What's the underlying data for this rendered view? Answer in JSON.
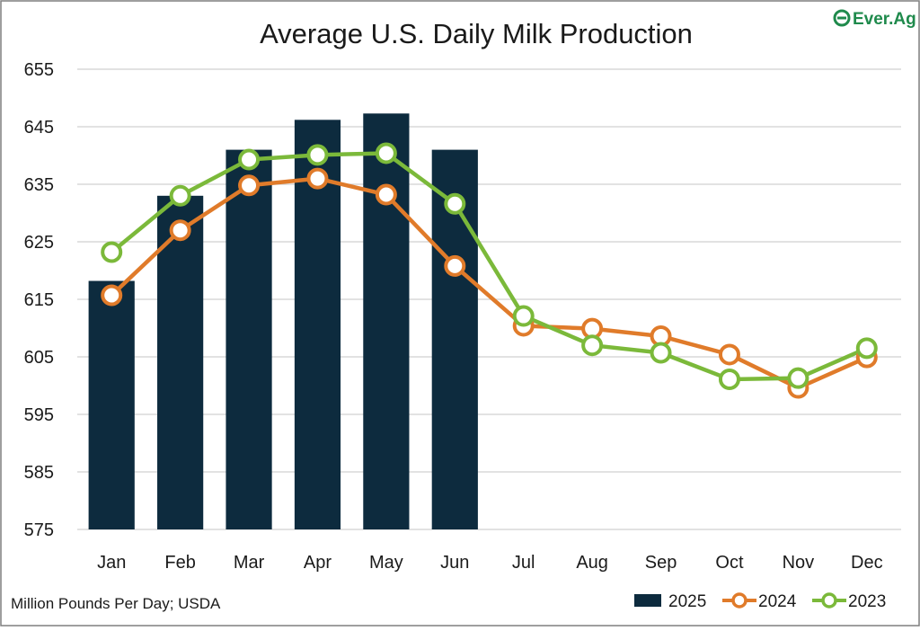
{
  "brand": {
    "logo_text": "Ever.Ag",
    "logo_color": "#1f8a4c"
  },
  "footer": {
    "source_note": "Million Pounds Per Day; USDA"
  },
  "chart_data": {
    "type": "bar",
    "title": "Average U.S. Daily Milk Production",
    "xlabel": "",
    "ylabel": "",
    "categories": [
      "Jan",
      "Feb",
      "Mar",
      "Apr",
      "May",
      "Jun",
      "Jul",
      "Aug",
      "Sep",
      "Oct",
      "Nov",
      "Dec"
    ],
    "ylim": [
      575,
      655
    ],
    "yticks": [
      575,
      585,
      595,
      605,
      615,
      625,
      635,
      645,
      655
    ],
    "grid": true,
    "legend_position": "bottom-right",
    "series": [
      {
        "name": "2025",
        "type": "bar",
        "color": "#0d2b3e",
        "values": [
          618.2,
          633.0,
          641.0,
          646.2,
          647.3,
          641.0,
          null,
          null,
          null,
          null,
          null,
          null
        ]
      },
      {
        "name": "2024",
        "type": "line",
        "color": "#e07b2a",
        "values": [
          615.7,
          627.0,
          634.8,
          636.0,
          633.2,
          620.8,
          610.4,
          609.9,
          608.6,
          605.4,
          599.6,
          604.9
        ]
      },
      {
        "name": "2023",
        "type": "line",
        "color": "#7bb93a",
        "values": [
          623.2,
          633.0,
          639.3,
          640.1,
          640.4,
          631.6,
          612.1,
          607.0,
          605.7,
          601.1,
          601.3,
          606.5
        ]
      }
    ]
  }
}
